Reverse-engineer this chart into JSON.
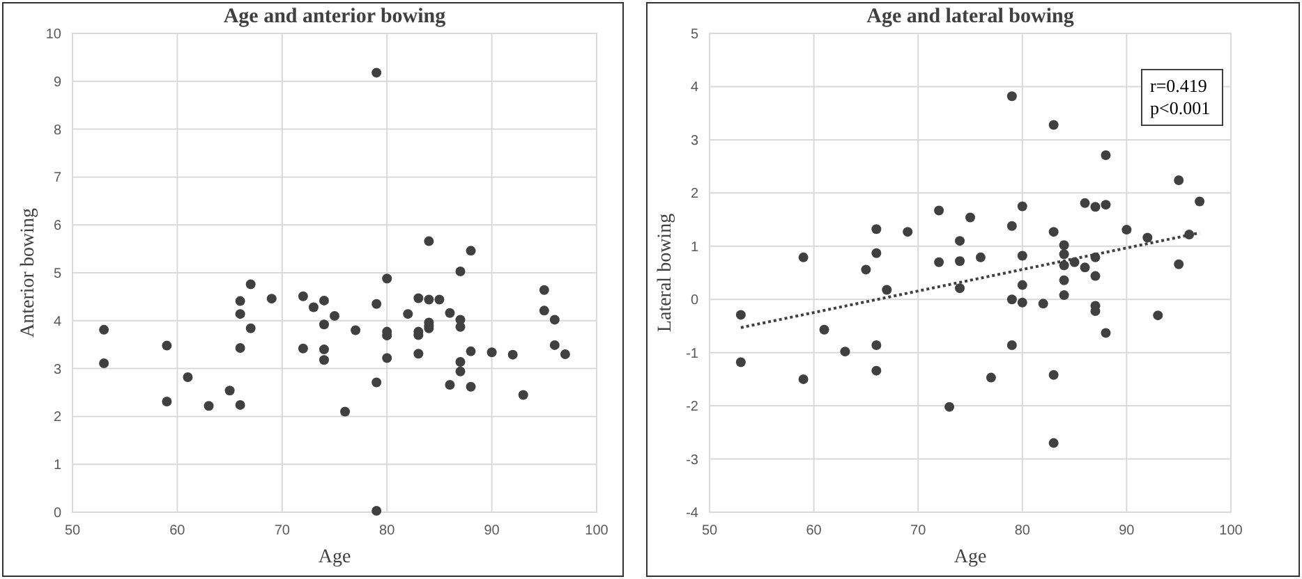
{
  "chart_data": [
    {
      "type": "scatter",
      "title": "Age and anterior bowing",
      "xlabel": "Age",
      "ylabel": "Anterior bowing",
      "xlim": [
        50,
        100
      ],
      "xticks": [
        50,
        60,
        70,
        80,
        90,
        100
      ],
      "ylim": [
        0,
        10
      ],
      "yticks": [
        0,
        1,
        2,
        3,
        4,
        5,
        6,
        7,
        8,
        9,
        10
      ],
      "grid": true,
      "marker": "circle",
      "series": [
        {
          "color": "#404040",
          "x": [
            53,
            53,
            59,
            59,
            61,
            63,
            65,
            66,
            66,
            66,
            66,
            67,
            67,
            69,
            72,
            72,
            73,
            74,
            74,
            74,
            74,
            75,
            76,
            77,
            79,
            79,
            79,
            79,
            80,
            80,
            80,
            80,
            82,
            83,
            83,
            83,
            83,
            84,
            84,
            84,
            84,
            84,
            85,
            86,
            86,
            87,
            87,
            87,
            87,
            87,
            88,
            88,
            88,
            90,
            92,
            93,
            95,
            95,
            96,
            96,
            97
          ],
          "values": [
            3.81,
            3.11,
            3.48,
            2.31,
            2.82,
            2.22,
            2.54,
            4.41,
            4.14,
            3.43,
            2.24,
            4.76,
            3.84,
            4.46,
            4.51,
            3.42,
            4.28,
            4.42,
            3.92,
            3.4,
            3.18,
            4.1,
            2.1,
            3.8,
            4.35,
            2.71,
            0.03,
            9.18,
            4.88,
            3.77,
            3.69,
            3.22,
            4.14,
            4.47,
            3.77,
            3.7,
            3.31,
            4.44,
            3.96,
            3.89,
            3.84,
            5.66,
            4.44,
            4.16,
            2.66,
            5.03,
            4.02,
            3.87,
            3.14,
            2.94,
            5.46,
            3.36,
            2.62,
            3.34,
            3.29,
            2.45,
            4.64,
            4.21,
            4.02,
            3.49,
            3.3
          ]
        }
      ]
    },
    {
      "type": "scatter",
      "title": "Age and lateral bowing",
      "xlabel": "Age",
      "ylabel": "Lateral bowing",
      "xlim": [
        50,
        100
      ],
      "xticks": [
        50,
        60,
        70,
        80,
        90,
        100
      ],
      "ylim": [
        -4,
        5
      ],
      "yticks": [
        -4,
        -3,
        -2,
        -1,
        0,
        1,
        2,
        3,
        4,
        5
      ],
      "grid": true,
      "marker": "circle",
      "annotations": [
        "r=0.419\np<0.001"
      ],
      "series": [
        {
          "color": "#404040",
          "x": [
            79,
            83,
            88,
            95,
            97,
            86,
            87,
            88,
            80,
            72,
            75,
            79,
            66,
            69,
            83,
            90,
            92,
            96,
            74,
            84,
            59,
            66,
            65,
            67,
            72,
            74,
            76,
            80,
            74,
            84,
            84,
            85,
            86,
            87,
            87,
            84,
            84,
            80,
            79,
            80,
            82,
            87,
            87,
            88,
            93,
            95,
            53,
            53,
            59,
            61,
            63,
            66,
            66,
            77,
            79,
            73,
            83,
            83
          ],
          "values": [
            3.82,
            3.28,
            2.71,
            2.24,
            1.84,
            1.81,
            1.74,
            1.78,
            1.75,
            1.67,
            1.54,
            1.38,
            1.32,
            1.27,
            1.27,
            1.31,
            1.16,
            1.22,
            1.1,
            1.02,
            0.79,
            0.87,
            0.56,
            0.18,
            0.7,
            0.72,
            0.79,
            0.82,
            0.21,
            0.85,
            0.64,
            0.7,
            0.6,
            0.79,
            0.44,
            0.36,
            0.08,
            0.27,
            0,
            -0.06,
            -0.08,
            -0.12,
            -0.22,
            -0.63,
            -0.3,
            0.66,
            -0.29,
            -1.18,
            -1.5,
            -0.57,
            -0.98,
            -0.86,
            -1.34,
            -1.47,
            -0.86,
            -2.02,
            -1.42,
            -2.7
          ]
        },
        {
          "type": "line",
          "color": "#404040",
          "x": [
            53,
            97
          ],
          "values": [
            -0.53,
            1.25
          ],
          "marker": "none",
          "line_style": "dotted"
        }
      ]
    }
  ]
}
